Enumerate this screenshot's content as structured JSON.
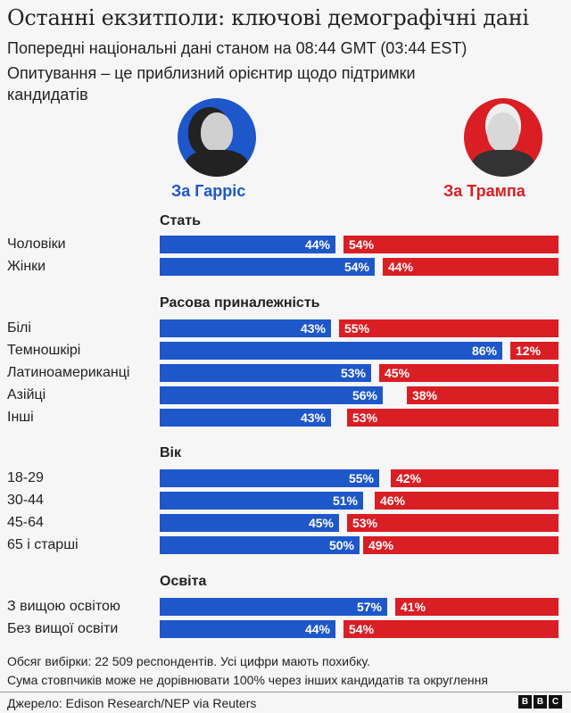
{
  "header": {
    "title": "Останні екзитполи: ключові демографічні дані",
    "subtitle1": "Попередні національні дані станом на 08:44 GMT (03:44 EST)",
    "subtitle2_line1": "Опитування – це приблизний орієнтир щодо підтримки",
    "subtitle2_line2": "кандидатів"
  },
  "candidates": {
    "harris": {
      "label": "За Гарріс",
      "color": "#1d57c9"
    },
    "trump": {
      "label": "За Трампа",
      "color": "#d91e24"
    }
  },
  "sections": {
    "gender": {
      "title": "Стать"
    },
    "race": {
      "title": "Расова приналежність"
    },
    "age": {
      "title": "Вік"
    },
    "education": {
      "title": "Освіта"
    }
  },
  "chart_data": {
    "type": "bar",
    "orientation": "horizontal-diverging",
    "title": "Останні екзитполи: ключові демографічні дані",
    "legend": [
      "За Гарріс",
      "За Трампа"
    ],
    "groups": [
      {
        "title": "Стать",
        "categories": [
          "Чоловіки",
          "Жінки"
        ],
        "harris": [
          44,
          54
        ],
        "trump": [
          54,
          44
        ]
      },
      {
        "title": "Расова приналежність",
        "categories": [
          "Білі",
          "Темношкірі",
          "Латиноамериканці",
          "Азійці",
          "Інші"
        ],
        "harris": [
          43,
          86,
          53,
          56,
          43
        ],
        "trump": [
          55,
          12,
          45,
          38,
          53
        ]
      },
      {
        "title": "Вік",
        "categories": [
          "18-29",
          "30-44",
          "45-64",
          "65 і старші"
        ],
        "harris": [
          55,
          51,
          45,
          50
        ],
        "trump": [
          42,
          46,
          53,
          49
        ]
      },
      {
        "title": "Освіта",
        "categories": [
          "З вищою освітою",
          "Без вищої освіти"
        ],
        "harris": [
          57,
          44
        ],
        "trump": [
          41,
          54
        ]
      }
    ],
    "series": [
      {
        "name": "За Гарріс",
        "values": [
          44,
          54,
          43,
          86,
          53,
          56,
          43,
          55,
          51,
          45,
          50,
          57,
          44
        ]
      },
      {
        "name": "За Трампа",
        "values": [
          54,
          44,
          55,
          12,
          45,
          38,
          53,
          42,
          46,
          53,
          49,
          41,
          54
        ]
      }
    ],
    "categories": [
      "Чоловіки",
      "Жінки",
      "Білі",
      "Темношкірі",
      "Латиноамериканці",
      "Азійці",
      "Інші",
      "18-29",
      "30-44",
      "45-64",
      "65 і старші",
      "З вищою освітою",
      "Без вищої освіти"
    ],
    "xlim": [
      0,
      100
    ]
  },
  "rows": [
    {
      "label": "Чоловіки",
      "h": "44%",
      "t": "54%"
    },
    {
      "label": "Жінки",
      "h": "54%",
      "t": "44%"
    },
    {
      "label": "Білі",
      "h": "43%",
      "t": "55%"
    },
    {
      "label": "Темношкірі",
      "h": "86%",
      "t": "12%"
    },
    {
      "label": "Латиноамериканці",
      "h": "53%",
      "t": "45%"
    },
    {
      "label": "Азійці",
      "h": "56%",
      "t": "38%"
    },
    {
      "label": "Інші",
      "h": "43%",
      "t": "53%"
    },
    {
      "label": "18-29",
      "h": "55%",
      "t": "42%"
    },
    {
      "label": "30-44",
      "h": "51%",
      "t": "46%"
    },
    {
      "label": "45-64",
      "h": "45%",
      "t": "53%"
    },
    {
      "label": "65 і старші",
      "h": "50%",
      "t": "49%"
    },
    {
      "label": "З вищою освітою",
      "h": "57%",
      "t": "41%"
    },
    {
      "label": "Без вищої освіти",
      "h": "44%",
      "t": "54%"
    }
  ],
  "footer": {
    "note1": "Обсяг вибірки: 22 509 респондентів. Усі цифри мають похибку.",
    "note2": "Сума стовпчиків може не дорівнювати 100% через інших кандидатів та округлення",
    "source": "Джерело: Edison Research/NEP via Reuters",
    "logo": [
      "B",
      "B",
      "C"
    ]
  }
}
